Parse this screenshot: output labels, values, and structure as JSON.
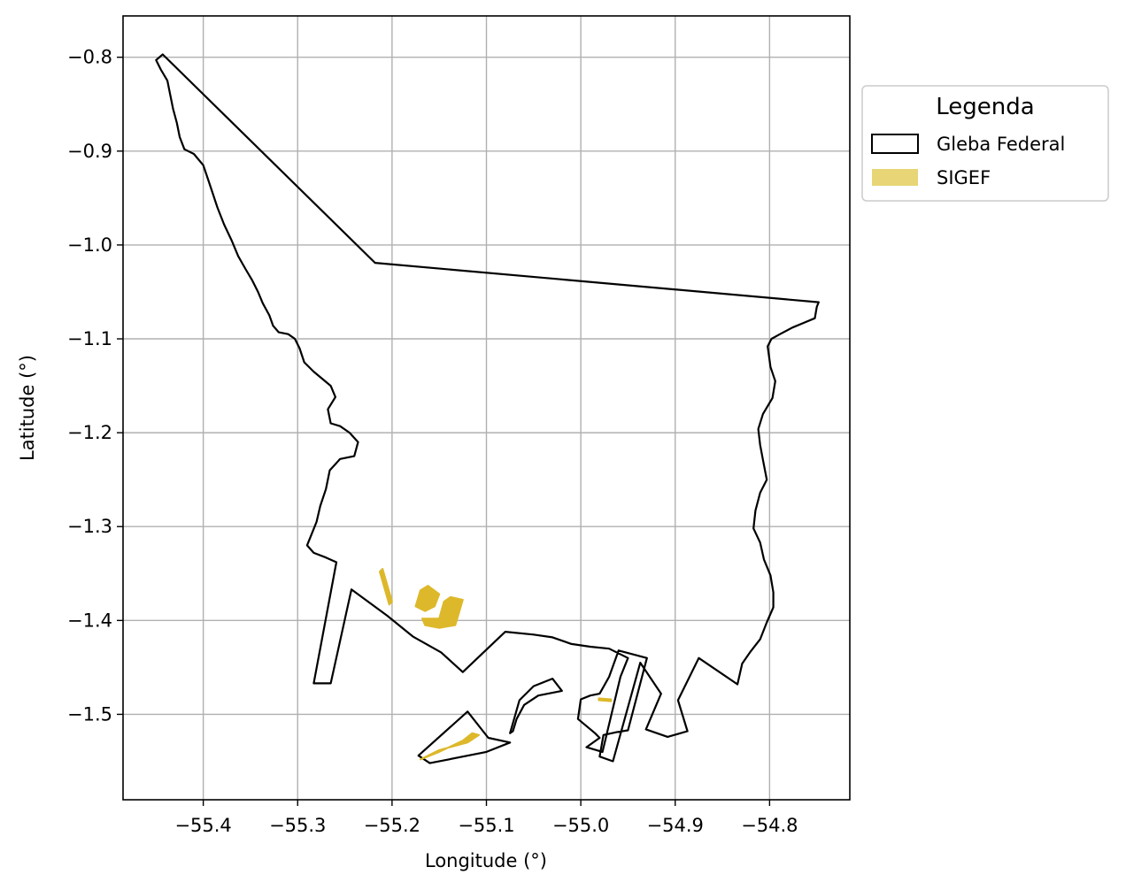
{
  "map": {
    "xlabel": "Longitude (°)",
    "ylabel": "Latitude (°)",
    "xlim": [
      -55.485,
      -54.715
    ],
    "ylim": [
      -1.591,
      -0.756
    ],
    "x_ticks": [
      -55.4,
      -55.3,
      -55.2,
      -55.1,
      -55.0,
      -54.9,
      -54.8
    ],
    "y_ticks": [
      -0.8,
      -0.9,
      -1.0,
      -1.1,
      -1.2,
      -1.3,
      -1.4,
      -1.5
    ],
    "x_tick_labels": [
      "−55.4",
      "−55.3",
      "−55.2",
      "−55.1",
      "−55.0",
      "−54.9",
      "−54.8"
    ],
    "y_tick_labels": [
      "−0.8",
      "−0.9",
      "−1.0",
      "−1.1",
      "−1.2",
      "−1.3",
      "−1.4",
      "−1.5"
    ],
    "grid": true,
    "colors": {
      "gleba_edge": "#000000",
      "sigef_fill": "#DDB82A",
      "grid": "#b0b0b0"
    }
  },
  "legend": {
    "title": "Legenda",
    "placement": "outside-right-top",
    "items": [
      {
        "label": "Gleba Federal",
        "symbol": "outline-rect",
        "color": "#000000"
      },
      {
        "label": "SIGEF",
        "symbol": "filled-rect",
        "color": "#E8D575"
      }
    ]
  },
  "layers": {
    "gleba_federal": [
      [
        [
          -55.443,
          -0.797
        ],
        [
          -55.218,
          -1.019
        ],
        [
          -54.748,
          -1.061
        ],
        [
          -54.75,
          -1.066
        ],
        [
          -54.752,
          -1.078
        ],
        [
          -54.764,
          -1.083
        ],
        [
          -54.776,
          -1.088
        ],
        [
          -54.789,
          -1.095
        ],
        [
          -54.798,
          -1.1
        ],
        [
          -54.802,
          -1.108
        ],
        [
          -54.799,
          -1.13
        ],
        [
          -54.794,
          -1.145
        ],
        [
          -54.797,
          -1.163
        ],
        [
          -54.807,
          -1.18
        ],
        [
          -54.812,
          -1.196
        ],
        [
          -54.81,
          -1.213
        ],
        [
          -54.807,
          -1.229
        ],
        [
          -54.803,
          -1.25
        ],
        [
          -54.81,
          -1.264
        ],
        [
          -54.815,
          -1.283
        ],
        [
          -54.817,
          -1.302
        ],
        [
          -54.81,
          -1.317
        ],
        [
          -54.806,
          -1.335
        ],
        [
          -54.799,
          -1.352
        ],
        [
          -54.796,
          -1.37
        ],
        [
          -54.796,
          -1.386
        ],
        [
          -54.803,
          -1.402
        ],
        [
          -54.81,
          -1.42
        ],
        [
          -54.82,
          -1.433
        ],
        [
          -54.829,
          -1.446
        ],
        [
          -54.834,
          -1.468
        ],
        [
          -54.875,
          -1.44
        ],
        [
          -54.897,
          -1.485
        ],
        [
          -54.887,
          -1.518
        ],
        [
          -54.908,
          -1.524
        ],
        [
          -54.931,
          -1.516
        ],
        [
          -54.915,
          -1.478
        ],
        [
          -54.937,
          -1.445
        ],
        [
          -54.966,
          -1.55
        ],
        [
          -54.98,
          -1.545
        ],
        [
          -54.976,
          -1.522
        ],
        [
          -54.962,
          -1.519
        ],
        [
          -54.95,
          -1.517
        ],
        [
          -54.93,
          -1.44
        ],
        [
          -54.96,
          -1.432
        ],
        [
          -54.97,
          -1.46
        ],
        [
          -54.98,
          -1.478
        ],
        [
          -54.99,
          -1.48
        ],
        [
          -55.0,
          -1.484
        ],
        [
          -55.003,
          -1.505
        ],
        [
          -54.985,
          -1.52
        ],
        [
          -54.98,
          -1.525
        ],
        [
          -54.994,
          -1.535
        ],
        [
          -54.977,
          -1.54
        ],
        [
          -54.958,
          -1.46
        ],
        [
          -54.95,
          -1.44
        ],
        [
          -54.97,
          -1.43
        ],
        [
          -54.99,
          -1.428
        ],
        [
          -55.01,
          -1.425
        ],
        [
          -55.03,
          -1.418
        ],
        [
          -55.05,
          -1.415
        ],
        [
          -55.08,
          -1.412
        ],
        [
          -55.125,
          -1.455
        ],
        [
          -55.148,
          -1.434
        ],
        [
          -55.178,
          -1.417
        ],
        [
          -55.205,
          -1.395
        ],
        [
          -55.243,
          -1.367
        ],
        [
          -55.265,
          -1.467
        ],
        [
          -55.283,
          -1.467
        ],
        [
          -55.259,
          -1.338
        ],
        [
          -55.27,
          -1.333
        ],
        [
          -55.283,
          -1.328
        ],
        [
          -55.29,
          -1.32
        ],
        [
          -55.286,
          -1.31
        ],
        [
          -55.28,
          -1.295
        ],
        [
          -55.276,
          -1.278
        ],
        [
          -55.27,
          -1.26
        ],
        [
          -55.266,
          -1.24
        ],
        [
          -55.255,
          -1.228
        ],
        [
          -55.24,
          -1.225
        ],
        [
          -55.236,
          -1.21
        ],
        [
          -55.245,
          -1.2
        ],
        [
          -55.255,
          -1.193
        ],
        [
          -55.265,
          -1.19
        ],
        [
          -55.268,
          -1.175
        ],
        [
          -55.26,
          -1.162
        ],
        [
          -55.265,
          -1.15
        ],
        [
          -55.283,
          -1.135
        ],
        [
          -55.293,
          -1.125
        ],
        [
          -55.298,
          -1.11
        ],
        [
          -55.303,
          -1.1
        ],
        [
          -55.31,
          -1.095
        ],
        [
          -55.32,
          -1.093
        ],
        [
          -55.326,
          -1.086
        ],
        [
          -55.33,
          -1.075
        ],
        [
          -55.337,
          -1.062
        ],
        [
          -55.342,
          -1.05
        ],
        [
          -55.348,
          -1.038
        ],
        [
          -55.355,
          -1.026
        ],
        [
          -55.363,
          -1.012
        ],
        [
          -55.37,
          -0.995
        ],
        [
          -55.378,
          -0.978
        ],
        [
          -55.385,
          -0.96
        ],
        [
          -55.39,
          -0.945
        ],
        [
          -55.395,
          -0.93
        ],
        [
          -55.4,
          -0.915
        ],
        [
          -55.41,
          -0.903
        ],
        [
          -55.42,
          -0.898
        ],
        [
          -55.425,
          -0.885
        ],
        [
          -55.428,
          -0.87
        ],
        [
          -55.432,
          -0.855
        ],
        [
          -55.435,
          -0.84
        ],
        [
          -55.438,
          -0.825
        ],
        [
          -55.445,
          -0.813
        ],
        [
          -55.45,
          -0.803
        ],
        [
          -55.443,
          -0.797
        ]
      ],
      [
        [
          -55.172,
          -1.544
        ],
        [
          -55.12,
          -1.497
        ],
        [
          -55.098,
          -1.525
        ],
        [
          -55.075,
          -1.53
        ],
        [
          -55.1,
          -1.54
        ],
        [
          -55.14,
          -1.548
        ],
        [
          -55.16,
          -1.552
        ],
        [
          -55.172,
          -1.544
        ]
      ],
      [
        [
          -55.075,
          -1.52
        ],
        [
          -55.065,
          -1.485
        ],
        [
          -55.05,
          -1.47
        ],
        [
          -55.03,
          -1.462
        ],
        [
          -55.02,
          -1.475
        ],
        [
          -55.045,
          -1.48
        ],
        [
          -55.06,
          -1.49
        ],
        [
          -55.068,
          -1.505
        ],
        [
          -55.072,
          -1.518
        ],
        [
          -55.075,
          -1.52
        ]
      ]
    ],
    "sigef": [
      [
        [
          -55.213,
          -1.348
        ],
        [
          -55.21,
          -1.345
        ],
        [
          -55.2,
          -1.38
        ],
        [
          -55.203,
          -1.383
        ]
      ],
      [
        [
          -55.17,
          -1.368
        ],
        [
          -55.162,
          -1.363
        ],
        [
          -55.15,
          -1.372
        ],
        [
          -55.155,
          -1.385
        ],
        [
          -55.165,
          -1.39
        ],
        [
          -55.175,
          -1.385
        ]
      ],
      [
        [
          -55.15,
          -1.398
        ],
        [
          -55.145,
          -1.38
        ],
        [
          -55.138,
          -1.375
        ],
        [
          -55.125,
          -1.378
        ],
        [
          -55.13,
          -1.395
        ],
        [
          -55.133,
          -1.405
        ],
        [
          -55.15,
          -1.408
        ],
        [
          -55.165,
          -1.405
        ],
        [
          -55.168,
          -1.398
        ]
      ],
      [
        [
          -55.17,
          -1.548
        ],
        [
          -55.15,
          -1.538
        ],
        [
          -55.12,
          -1.53
        ],
        [
          -55.108,
          -1.522
        ],
        [
          -55.115,
          -1.52
        ],
        [
          -55.125,
          -1.528
        ],
        [
          -55.15,
          -1.54
        ],
        [
          -55.165,
          -1.546
        ]
      ],
      [
        [
          -54.981,
          -1.483
        ],
        [
          -54.968,
          -1.484
        ],
        [
          -54.968,
          -1.486
        ],
        [
          -54.981,
          -1.485
        ]
      ]
    ]
  }
}
